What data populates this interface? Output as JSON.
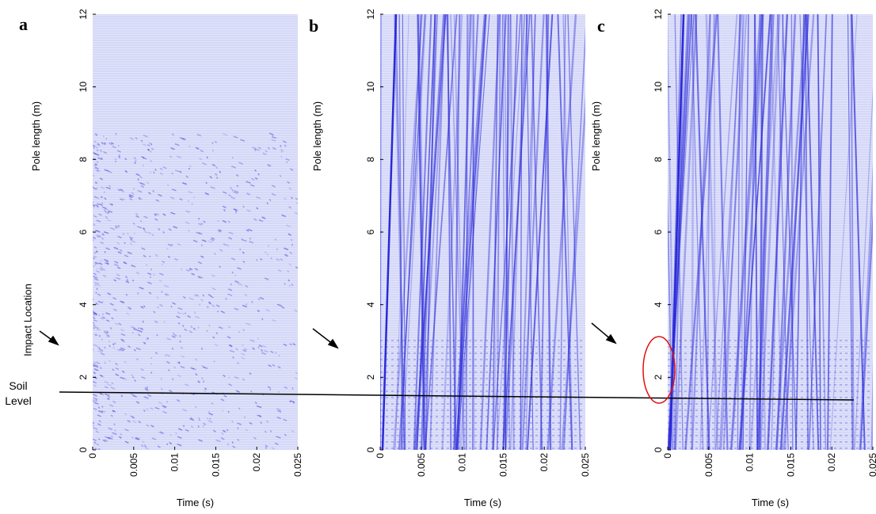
{
  "chart_data": [
    {
      "type": "image",
      "title": "a",
      "xlabel": "Time (s)",
      "ylabel": "Pole length (m)",
      "xlim": [
        0,
        0.025
      ],
      "xticks": [
        0,
        0.005,
        0.01,
        0.015,
        0.02,
        0.025
      ],
      "ylim": [
        0,
        12
      ],
      "yticks": [
        0,
        2,
        4,
        6,
        8,
        10,
        12
      ],
      "color": "#2a2ad8"
    },
    {
      "type": "image",
      "title": "b",
      "xlabel": "Time (s)",
      "ylabel": "Pole length (m)",
      "xlim": [
        0,
        0.025
      ],
      "xticks": [
        0,
        0.005,
        0.01,
        0.015,
        0.02,
        0.025
      ],
      "ylim": [
        0,
        12
      ],
      "yticks": [
        0,
        2,
        4,
        6,
        8,
        10,
        12
      ],
      "color": "#2a2ad8"
    },
    {
      "type": "image",
      "title": "c",
      "xlabel": "Time (s)",
      "ylabel": "Pole length (m)",
      "xlim": [
        0,
        0.025
      ],
      "xticks": [
        0,
        0.005,
        0.01,
        0.015,
        0.02,
        0.025
      ],
      "ylim": [
        0,
        12
      ],
      "yticks": [
        0,
        2,
        4,
        6,
        8,
        10,
        12
      ],
      "color": "#2a2ad8"
    }
  ],
  "annotations": {
    "impact": "Impact Location",
    "soil": "Soil Level"
  }
}
